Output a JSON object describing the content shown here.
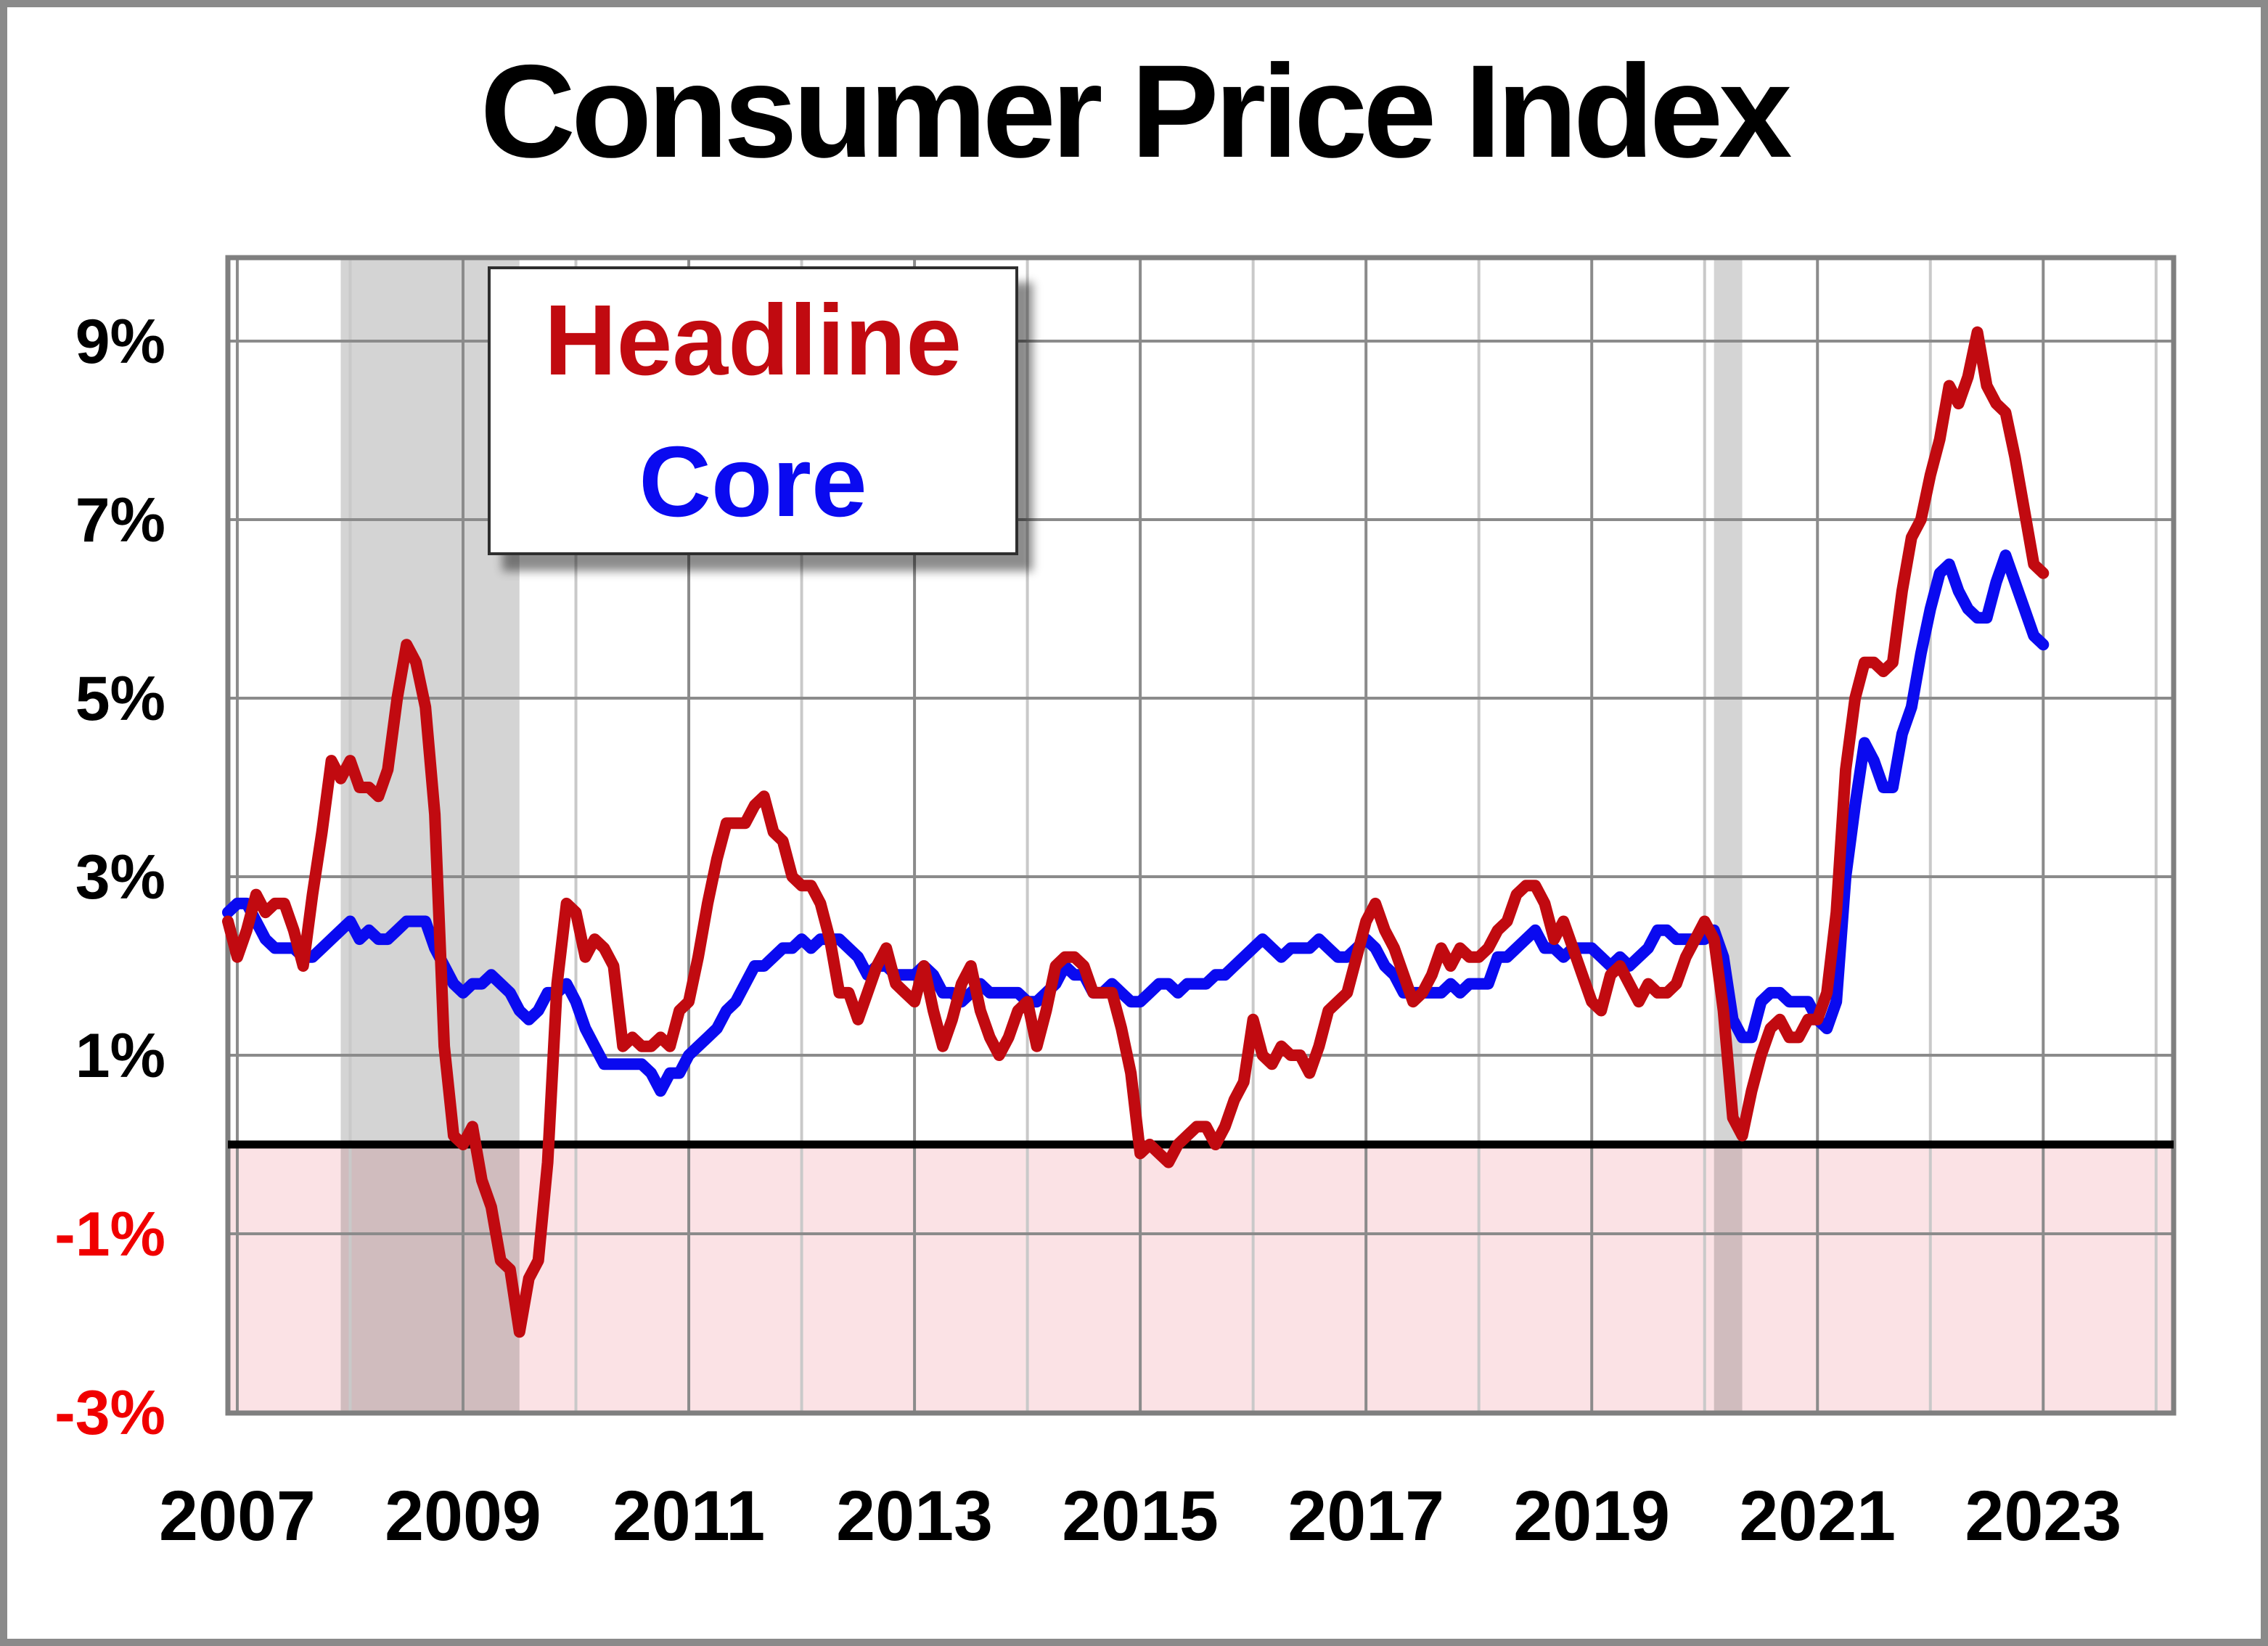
{
  "title": "Consumer Price Index",
  "legend": {
    "headline_label": "Headline",
    "core_label": "Core"
  },
  "colors": {
    "headline": "#C10A10",
    "core": "#0A0AF0",
    "tick_label": "#000000",
    "negative_tick_label": "#F00000",
    "grid_dark": "#8B8B8B",
    "grid_light": "#C9C9C9",
    "frame": "#7F7F7F",
    "zero_line": "#000000",
    "recession_band": "#D4D4D4",
    "below_zero_fill": "#FBE2E5",
    "background": "#FFFFFF"
  },
  "chart_data": {
    "type": "line",
    "title": "Consumer Price Index",
    "x_frequency": "monthly",
    "x_start": "2006-12",
    "x_end_data": "2023-01",
    "x_months_total": 207,
    "ylim": [
      -3,
      9.95
    ],
    "grid": true,
    "legend_position": "top-left",
    "y_ticks": [
      {
        "label": "9%",
        "value": 9
      },
      {
        "label": "7%",
        "value": 7
      },
      {
        "label": "5%",
        "value": 5
      },
      {
        "label": "3%",
        "value": 3
      },
      {
        "label": "1%",
        "value": 1
      },
      {
        "label": "-1%",
        "value": -1
      },
      {
        "label": "-3%",
        "value": -3
      }
    ],
    "x_tick_years": [
      2007,
      2009,
      2011,
      2013,
      2015,
      2017,
      2019,
      2021,
      2023
    ],
    "x_minor_years": [
      2008,
      2010,
      2012,
      2014,
      2016,
      2018,
      2020,
      2022,
      2024
    ],
    "shaded_bands": [
      {
        "name": "great-recession",
        "start": "2007-12",
        "end": "2009-06"
      },
      {
        "name": "covid-recession",
        "start": "2020-02",
        "end": "2020-04"
      }
    ],
    "series": [
      {
        "name": "Headline",
        "color_key": "headline",
        "values": [
          2.5,
          2.1,
          2.4,
          2.8,
          2.6,
          2.7,
          2.7,
          2.4,
          2.0,
          2.8,
          3.5,
          4.3,
          4.1,
          4.3,
          4.0,
          4.0,
          3.9,
          4.2,
          5.0,
          5.6,
          5.4,
          4.9,
          3.7,
          1.1,
          0.1,
          0.0,
          0.2,
          -0.4,
          -0.7,
          -1.3,
          -1.4,
          -2.1,
          -1.5,
          -1.3,
          -0.2,
          1.8,
          2.7,
          2.6,
          2.1,
          2.3,
          2.2,
          2.0,
          1.1,
          1.2,
          1.1,
          1.1,
          1.2,
          1.1,
          1.5,
          1.6,
          2.1,
          2.7,
          3.2,
          3.6,
          3.6,
          3.6,
          3.8,
          3.9,
          3.5,
          3.4,
          3.0,
          2.9,
          2.9,
          2.7,
          2.3,
          1.7,
          1.7,
          1.4,
          1.7,
          2.0,
          2.2,
          1.8,
          1.7,
          1.6,
          2.0,
          1.5,
          1.1,
          1.4,
          1.8,
          2.0,
          1.5,
          1.2,
          1.0,
          1.2,
          1.5,
          1.6,
          1.1,
          1.5,
          2.0,
          2.1,
          2.1,
          2.0,
          1.7,
          1.7,
          1.7,
          1.3,
          0.8,
          -0.1,
          0.0,
          -0.1,
          -0.2,
          0.0,
          0.1,
          0.2,
          0.2,
          0.0,
          0.2,
          0.5,
          0.7,
          1.4,
          1.0,
          0.9,
          1.1,
          1.0,
          1.0,
          0.8,
          1.1,
          1.5,
          1.6,
          1.7,
          2.1,
          2.5,
          2.7,
          2.4,
          2.2,
          1.9,
          1.6,
          1.7,
          1.9,
          2.2,
          2.0,
          2.2,
          2.1,
          2.1,
          2.2,
          2.4,
          2.5,
          2.8,
          2.9,
          2.9,
          2.7,
          2.3,
          2.5,
          2.2,
          1.9,
          1.6,
          1.5,
          1.9,
          2.0,
          1.8,
          1.6,
          1.8,
          1.7,
          1.7,
          1.8,
          2.1,
          2.3,
          2.5,
          2.3,
          1.5,
          0.3,
          0.1,
          0.6,
          1.0,
          1.3,
          1.4,
          1.2,
          1.2,
          1.4,
          1.4,
          1.7,
          2.6,
          4.2,
          5.0,
          5.4,
          5.4,
          5.3,
          5.4,
          6.2,
          6.8,
          7.0,
          7.5,
          7.9,
          8.5,
          8.3,
          8.6,
          9.1,
          8.5,
          8.3,
          8.2,
          7.7,
          7.1,
          6.5,
          6.4
        ]
      },
      {
        "name": "Core",
        "color_key": "core",
        "values": [
          2.6,
          2.7,
          2.7,
          2.5,
          2.3,
          2.2,
          2.2,
          2.2,
          2.1,
          2.1,
          2.2,
          2.3,
          2.4,
          2.5,
          2.3,
          2.4,
          2.3,
          2.3,
          2.4,
          2.5,
          2.5,
          2.5,
          2.2,
          2.0,
          1.8,
          1.7,
          1.8,
          1.8,
          1.9,
          1.8,
          1.7,
          1.5,
          1.4,
          1.5,
          1.7,
          1.7,
          1.8,
          1.6,
          1.3,
          1.1,
          0.9,
          0.9,
          0.9,
          0.9,
          0.9,
          0.8,
          0.6,
          0.8,
          0.8,
          1.0,
          1.1,
          1.2,
          1.3,
          1.5,
          1.6,
          1.8,
          2.0,
          2.0,
          2.1,
          2.2,
          2.2,
          2.3,
          2.2,
          2.3,
          2.3,
          2.3,
          2.2,
          2.1,
          1.9,
          2.0,
          2.0,
          1.9,
          1.9,
          1.9,
          2.0,
          1.9,
          1.7,
          1.7,
          1.6,
          1.7,
          1.8,
          1.7,
          1.7,
          1.7,
          1.7,
          1.6,
          1.6,
          1.7,
          1.8,
          2.0,
          1.9,
          1.9,
          1.7,
          1.7,
          1.8,
          1.7,
          1.6,
          1.6,
          1.7,
          1.8,
          1.8,
          1.7,
          1.8,
          1.8,
          1.8,
          1.9,
          1.9,
          2.0,
          2.1,
          2.2,
          2.3,
          2.2,
          2.1,
          2.2,
          2.2,
          2.2,
          2.3,
          2.2,
          2.1,
          2.1,
          2.2,
          2.3,
          2.2,
          2.0,
          1.9,
          1.7,
          1.7,
          1.7,
          1.7,
          1.7,
          1.8,
          1.7,
          1.8,
          1.8,
          1.8,
          2.1,
          2.1,
          2.2,
          2.3,
          2.4,
          2.2,
          2.2,
          2.1,
          2.2,
          2.2,
          2.2,
          2.1,
          2.0,
          2.1,
          2.0,
          2.1,
          2.2,
          2.4,
          2.4,
          2.3,
          2.3,
          2.3,
          2.3,
          2.4,
          2.1,
          1.4,
          1.2,
          1.2,
          1.6,
          1.7,
          1.7,
          1.6,
          1.6,
          1.6,
          1.4,
          1.3,
          1.6,
          3.0,
          3.8,
          4.5,
          4.3,
          4.0,
          4.0,
          4.6,
          4.9,
          5.5,
          6.0,
          6.4,
          6.5,
          6.2,
          6.0,
          5.9,
          5.9,
          6.3,
          6.6,
          6.3,
          6.0,
          5.7,
          5.6
        ]
      }
    ]
  }
}
